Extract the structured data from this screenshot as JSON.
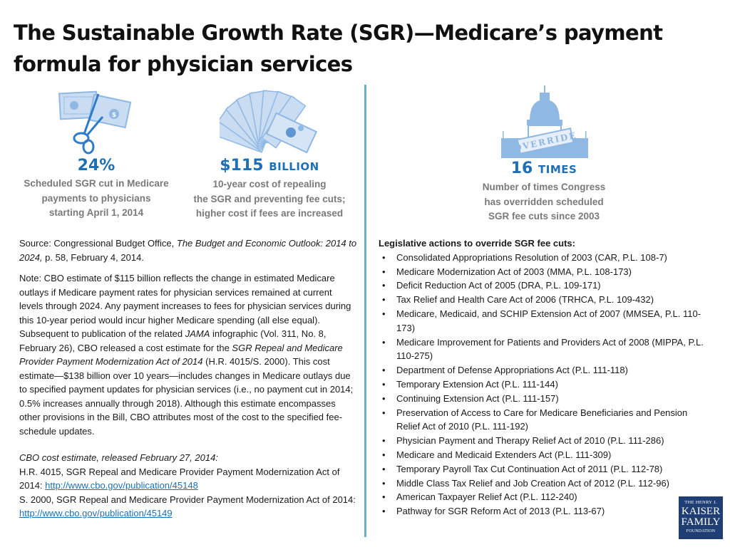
{
  "title": "The Sustainable Growth Rate (SGR)—Medicare’s payment formula for physician services",
  "stats": [
    {
      "icon": "scissors-cutting-dollar-icon",
      "value": "24%",
      "unit": "",
      "description_lines": [
        "Scheduled SGR cut in Medicare",
        "payments to physicians",
        "starting April 1, 2014"
      ]
    },
    {
      "icon": "fanned-dollar-bills-icon",
      "value": "$115",
      "unit": "BILLION",
      "description_lines": [
        "10-year cost of repealing",
        "the SGR and preventing fee cuts;",
        "higher cost if fees are increased"
      ]
    },
    {
      "icon": "capitol-override-stamp-icon",
      "value": "16",
      "unit": "TIMES",
      "stamp_text": "OVERRIDE",
      "description_lines": [
        "Number of times Congress",
        "has overridden scheduled",
        "SGR fee cuts since 2003"
      ]
    }
  ],
  "source": {
    "prefix": "Source: Congressional Budget Office, ",
    "italic": "The Budget and Economic Outlook: 2014 to 2024,",
    "suffix": " p. 58, February 4, 2014."
  },
  "note": {
    "part1": "Note: CBO estimate of $115 billion reflects the change in estimated Medicare outlays if Medicare payment rates for physician services remained at current levels through 2024. Any payment increases to fees for physician services during this 10-year period would incur higher Medicare spending (all else equal).  Subsequent to publication of the related ",
    "jama": "JAMA",
    "part2": " infographic (Vol. 311, No. 8, February 26), CBO released a cost estimate for the ",
    "act_italic": "SGR Repeal and Medicare Provider Payment Modernization Act of 2014",
    "part3": " (H.R. 4015/S. 2000).  This cost estimate—$138 billion over 10 years—includes changes in Medicare outlays due to specified payment updates for physician services (i.e., no payment cut in 2014; 0.5% increases annually through 2018).  Although this estimate encompasses other provisions in the Bill, CBO attributes most of the cost to the specified fee-schedule updates."
  },
  "cbo_estimate": {
    "heading": "CBO cost estimate, released February 27, 2014:",
    "item1_text": "H.R. 4015, SGR Repeal and Medicare Provider Payment Modernization Act of 2014: ",
    "item1_link": "http://www.cbo.gov/publication/45148",
    "item2_text": "S. 2000, SGR Repeal and Medicare Provider Payment Modernization Act of 2014: ",
    "item2_link": "http://www.cbo.gov/publication/45149"
  },
  "legislative": {
    "heading": "Legislative actions to override SGR fee cuts:",
    "items": [
      "Consolidated Appropriations Resolution of 2003 (CAR, P.L. 108-7)",
      "Medicare Modernization Act of 2003 (MMA, P.L. 108-173)",
      "Deficit Reduction Act of 2005 (DRA, P.L. 109-171)",
      "Tax Relief and Health Care Act of 2006 (TRHCA, P.L. 109-432)",
      "Medicare, Medicaid, and SCHIP Extension Act of 2007 (MMSEA, P.L. 110-173)",
      "Medicare Improvement for Patients and Providers Act of 2008 (MIPPA, P.L. 110-275)",
      "Department of Defense Appropriations Act (P.L. 111-118)",
      "Temporary Extension Act (P.L. 111-144)",
      "Continuing Extension Act (P.L. 111-157)",
      "Preservation of Access to Care for Medicare Beneficiaries and Pension  Relief Act of 2010 (P.L. 111-192)",
      "Physician Payment and Therapy Relief Act of 2010 (P.L. 111-286)",
      "Medicare and Medicaid Extenders Act (P.L. 111-309)",
      "Temporary Payroll Tax Cut Continuation Act of 2011 (P.L. 112-78)",
      "Middle Class Tax Relief and Job Creation Act of 2012 (P.L. 112-96)",
      "American Taxpayer Relief Act (P.L. 112-240)",
      "Pathway for SGR Reform Act of 2013 (P.L. 113-67)"
    ]
  },
  "logo": {
    "line1": "THE HENRY J.",
    "line2": "KAISER",
    "line3": "FAMILY",
    "line4": "FOUNDATION"
  },
  "colors": {
    "accent": "#1f6fb5",
    "divider": "#6aaed0",
    "icon_fill": "#8fb8e3",
    "logo_bg": "#1f3f74",
    "desc_text": "#7a7a7a"
  }
}
